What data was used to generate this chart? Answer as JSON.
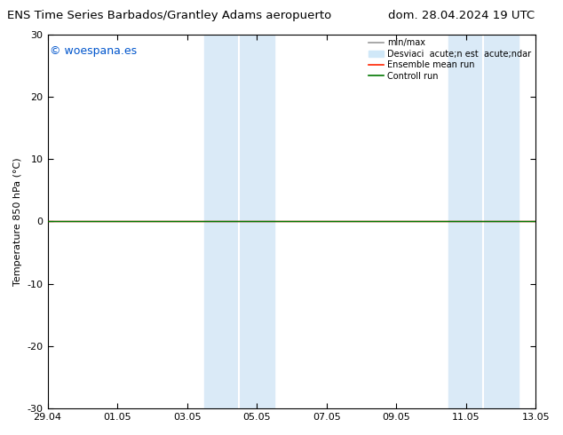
{
  "title_left": "ENS Time Series Barbados/Grantley Adams aeropuerto",
  "title_right": "dom. 28.04.2024 19 UTC",
  "ylabel": "Temperature 850 hPa (°C)",
  "ylim": [
    -30,
    30
  ],
  "yticks": [
    -30,
    -20,
    -10,
    0,
    10,
    20,
    30
  ],
  "xtick_positions": [
    0,
    2,
    4,
    6,
    8,
    10,
    12,
    14
  ],
  "xtick_labels": [
    "29.04",
    "01.05",
    "03.05",
    "05.05",
    "07.05",
    "09.05",
    "11.05",
    "13.05"
  ],
  "bg_color": "#ffffff",
  "plot_bg_color": "#ffffff",
  "band1_x_start": 4.5,
  "band1_x_end": 5.5,
  "band2_x_start": 5.5,
  "band2_x_end": 6.5,
  "band3_x_start": 11.5,
  "band3_x_end": 12.5,
  "band4_x_start": 12.5,
  "band4_x_end": 13.5,
  "band_color": "#daeaf7",
  "copyright_text": "© woespana.es",
  "copyright_color": "#0055cc",
  "zero_hline_color": "#000000",
  "zero_hline_lw": 0.8,
  "ensemble_line_color": "#ff2200",
  "ensemble_line_lw": 1.0,
  "control_line_color": "#007700",
  "control_line_lw": 1.0,
  "minmax_color": "#999999",
  "legend_label_minmax": "min/max",
  "legend_label_desv": "Desviaci  acute;n est  acute;ndar",
  "legend_label_ensemble": "Ensemble mean run",
  "legend_label_control": "Controll run",
  "legend_patch_color": "#d0e8f8",
  "tick_fontsize": 8,
  "ylabel_fontsize": 8,
  "title_fontsize": 9.5,
  "copyright_fontsize": 9
}
